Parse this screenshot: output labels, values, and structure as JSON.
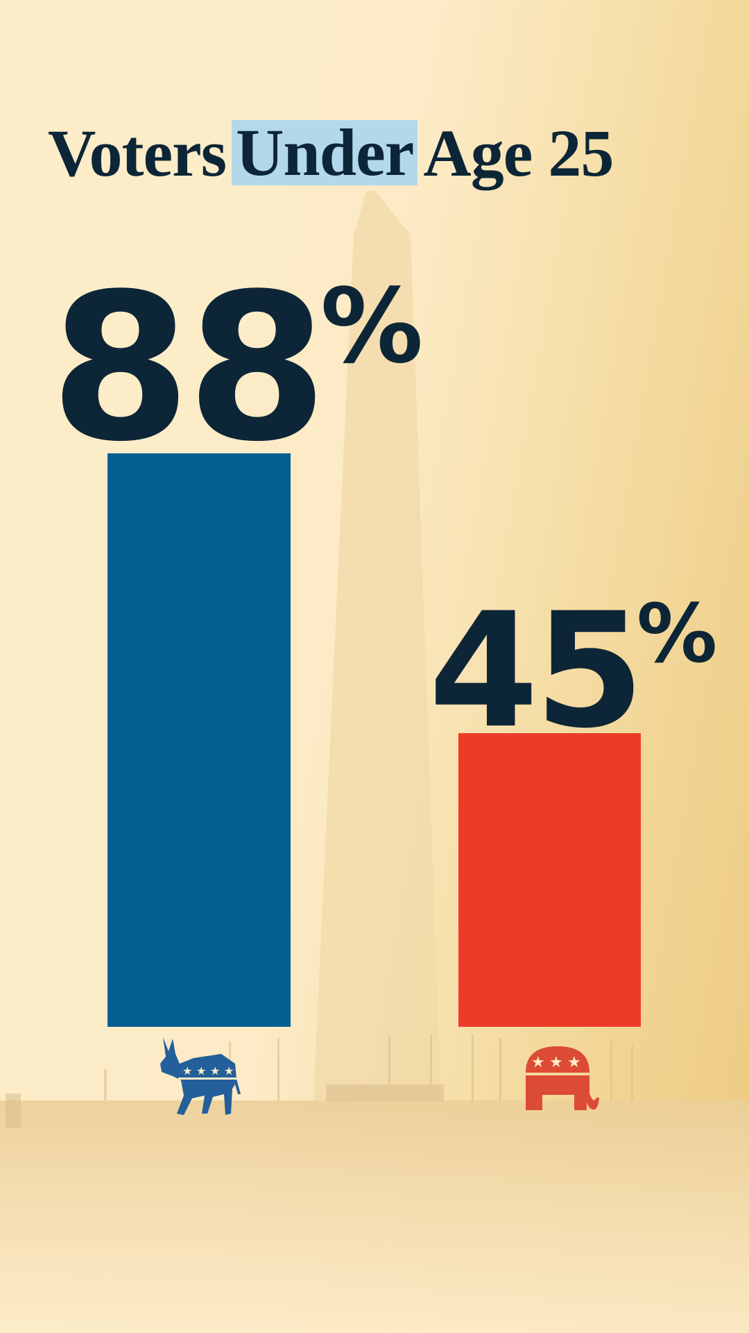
{
  "title": {
    "before": "Voters",
    "highlight": "Under",
    "after": "Age 25"
  },
  "chart_data": {
    "type": "bar",
    "title": "Voters Under Age 25",
    "categories": [
      "donkey-icon",
      "elephant-icon"
    ],
    "values": [
      88,
      45
    ],
    "unit": "%",
    "ylim": [
      0,
      100
    ],
    "colors": [
      "#025f91",
      "#eb3c2a"
    ],
    "data_labels": [
      "88",
      "45"
    ],
    "grid": false
  },
  "colors": {
    "text": "#0d2637",
    "highlight": "#b3d8ec",
    "background": "#fdecc9"
  }
}
